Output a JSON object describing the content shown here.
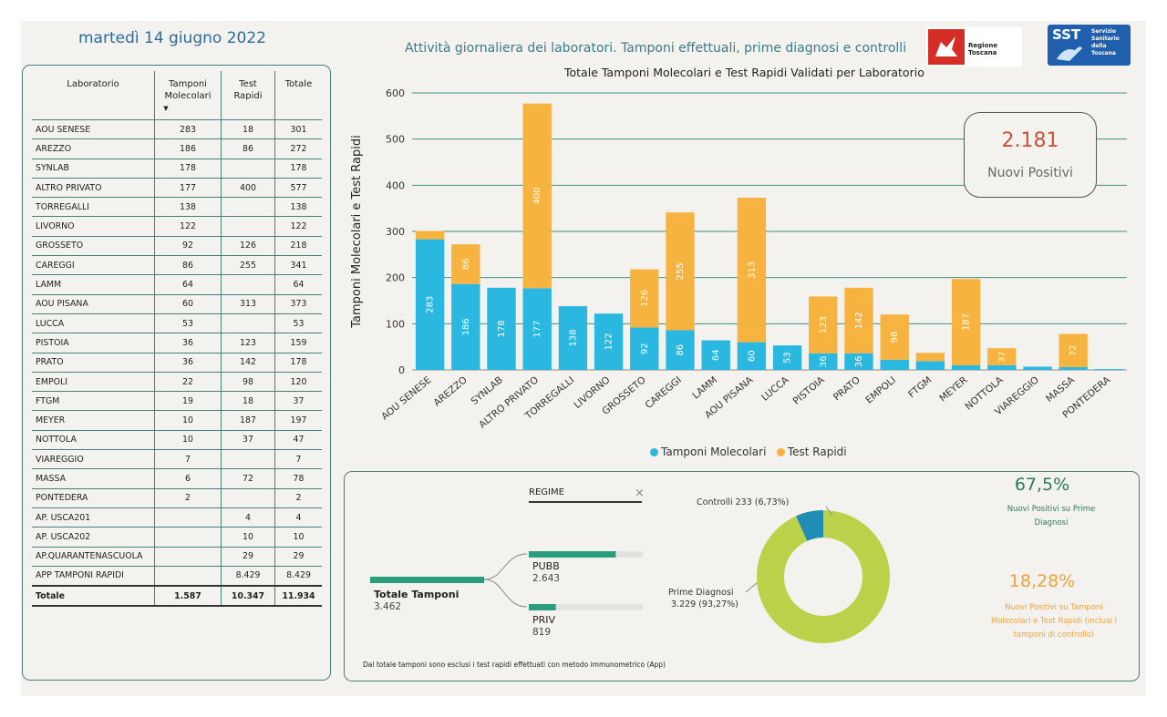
{
  "header": {
    "date": "martedì 14 giugno 2022",
    "title": "Attività giornaliera dei laboratori. Tamponi effettuali, prime diagnosi e controlli",
    "logo_rt": "Regione Toscana",
    "logo_sst_big": "SST",
    "logo_sst_small": "Servizio Sanitario della Toscana"
  },
  "table": {
    "headers": [
      "Laboratorio",
      "Tamponi Molecolari",
      "Test Rapidi",
      "Totale"
    ],
    "rows": [
      [
        "AOU SENESE",
        "283",
        "18",
        "301"
      ],
      [
        "AREZZO",
        "186",
        "86",
        "272"
      ],
      [
        "SYNLAB",
        "178",
        "",
        "178"
      ],
      [
        "ALTRO PRIVATO",
        "177",
        "400",
        "577"
      ],
      [
        "TORREGALLI",
        "138",
        "",
        "138"
      ],
      [
        "LIVORNO",
        "122",
        "",
        "122"
      ],
      [
        "GROSSETO",
        "92",
        "126",
        "218"
      ],
      [
        "CAREGGI",
        "86",
        "255",
        "341"
      ],
      [
        "LAMM",
        "64",
        "",
        "64"
      ],
      [
        "AOU PISANA",
        "60",
        "313",
        "373"
      ],
      [
        "LUCCA",
        "53",
        "",
        "53"
      ],
      [
        "PISTOIA",
        "36",
        "123",
        "159"
      ],
      [
        "PRATO",
        "36",
        "142",
        "178"
      ],
      [
        "EMPOLI",
        "22",
        "98",
        "120"
      ],
      [
        "FTGM",
        "19",
        "18",
        "37"
      ],
      [
        "MEYER",
        "10",
        "187",
        "197"
      ],
      [
        "NOTTOLA",
        "10",
        "37",
        "47"
      ],
      [
        "VIAREGGIO",
        "7",
        "",
        "7"
      ],
      [
        "MASSA",
        "6",
        "72",
        "78"
      ],
      [
        "PONTEDERA",
        "2",
        "",
        "2"
      ],
      [
        "AP. USCA201",
        "",
        "4",
        "4"
      ],
      [
        "AP. USCA202",
        "",
        "10",
        "10"
      ],
      [
        "AP.QUARANTENASCUOLA",
        "",
        "29",
        "29"
      ],
      [
        "APP TAMPONI RAPIDI",
        "",
        "8.429",
        "8.429"
      ]
    ],
    "total": [
      "Totale",
      "1.587",
      "10.347",
      "11.934"
    ]
  },
  "chart_data": {
    "type": "bar",
    "title": "Totale Tamponi Molecolari e Test Rapidi Validati per Laboratorio",
    "ylabel": "Tamponi Molecolari e Test Rapidi",
    "ylim": [
      0,
      600
    ],
    "yticks": [
      0,
      100,
      200,
      300,
      400,
      500,
      600
    ],
    "stacked": true,
    "categories": [
      "AOU SENESE",
      "AREZZO",
      "SYNLAB",
      "ALTRO PRIVATO",
      "TORREGALLI",
      "LIVORNO",
      "GROSSETO",
      "CAREGGI",
      "LAMM",
      "AOU PISANA",
      "LUCCA",
      "PISTOIA",
      "PRATO",
      "EMPOLI",
      "FTGM",
      "MEYER",
      "NOTTOLA",
      "VIAREGGIO",
      "MASSA",
      "PONTEDERA"
    ],
    "series": [
      {
        "name": "Tamponi Molecolari",
        "color": "#2bb8e0",
        "values": [
          283,
          186,
          178,
          177,
          138,
          122,
          92,
          86,
          64,
          60,
          53,
          36,
          36,
          22,
          19,
          10,
          10,
          7,
          6,
          2
        ],
        "labels": [
          "283",
          "186",
          "178",
          "177",
          "138",
          "122",
          "92",
          "86",
          "64",
          "60",
          "53",
          "36",
          "36",
          "",
          "",
          "",
          "",
          "",
          "",
          ""
        ]
      },
      {
        "name": "Test Rapidi",
        "color": "#f7b33f",
        "values": [
          18,
          86,
          0,
          400,
          0,
          0,
          126,
          255,
          0,
          313,
          0,
          123,
          142,
          98,
          18,
          187,
          37,
          0,
          72,
          0
        ],
        "labels": [
          "",
          "86",
          "",
          "400",
          "",
          "",
          "126",
          "255",
          "",
          "313",
          "",
          "123",
          "142",
          "98",
          "",
          "187",
          "37",
          "",
          "72",
          ""
        ]
      }
    ],
    "legend": "bottom",
    "grid": true
  },
  "kpi": {
    "value": "2.181",
    "label": "Nuovi Positivi"
  },
  "bottom": {
    "regime_label": "REGIME",
    "total_label": "Totale Tamponi",
    "total_value": "3.462",
    "pubb_label": "PUBB",
    "pubb_value": "2.643",
    "pubb_fraction": 0.763,
    "priv_label": "PRIV",
    "priv_value": "819",
    "priv_fraction": 0.237,
    "donut": {
      "controlli_label": "Controlli 233 (6,73%)",
      "prime_label_1": "Prime Diagnosi",
      "prime_label_2": "3.229 (93,27%)",
      "controlli_fraction": 0.0673,
      "controlli_color": "#1f8db4",
      "prime_color": "#bcd14a"
    },
    "pct1": "67,5%",
    "pct1_desc": "Nuovi Positivi su Prime Diagnosi",
    "pct2": "18,28%",
    "pct2_desc": "Nuovi Positivi su Tamponi Molecolari e Test Rapidi (inclusi i tamponi di controllo)",
    "footnote": "Dal totale tamponi sono esclusi i test rapidi effettuati con metodo immunometrico (App)"
  }
}
